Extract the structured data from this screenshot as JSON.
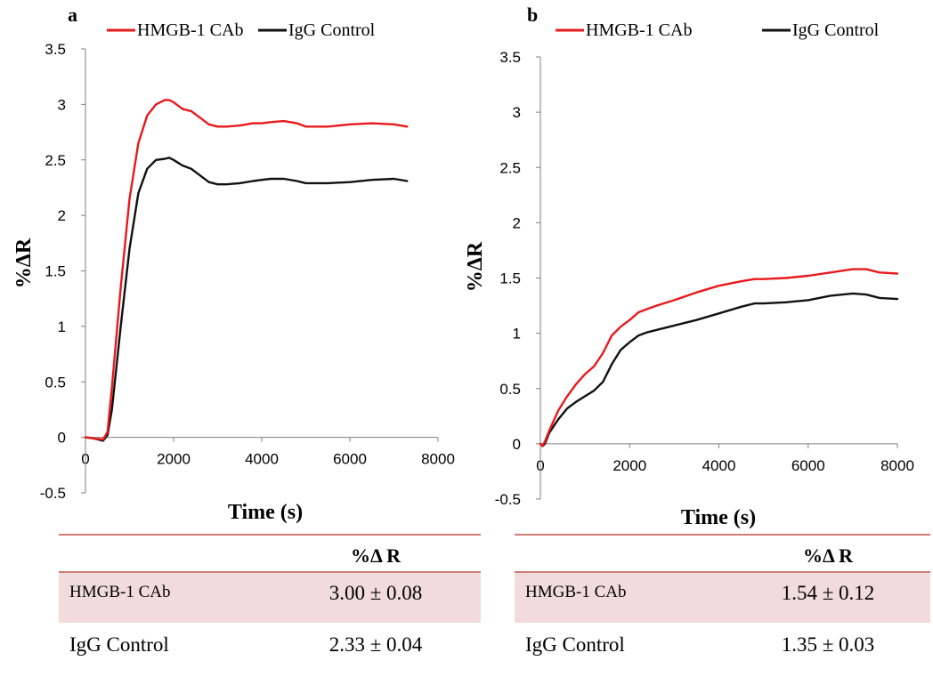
{
  "chart_data": [
    {
      "panel": "a",
      "type": "line",
      "xlabel": "Time (s)",
      "ylabel": "%ΔR",
      "xlim": [
        0,
        8000
      ],
      "ylim": [
        -0.5,
        3.5
      ],
      "xticks": [
        "0",
        "2000",
        "4000",
        "6000",
        "8000"
      ],
      "yticks": [
        "-0.5",
        "0",
        "0.5",
        "1",
        "1.5",
        "2",
        "2.5",
        "3",
        "3.5"
      ],
      "legend_position": "top",
      "series": [
        {
          "name": "HMGB-1 CAb",
          "color": "#e8191c",
          "x": [
            0,
            200,
            400,
            500,
            600,
            800,
            1000,
            1200,
            1400,
            1600,
            1800,
            1900,
            2000,
            2200,
            2400,
            2600,
            2800,
            3000,
            3200,
            3500,
            3800,
            4000,
            4200,
            4500,
            4800,
            5000,
            5200,
            5500,
            6000,
            6500,
            7000,
            7300
          ],
          "y": [
            0.0,
            -0.01,
            -0.02,
            0.05,
            0.45,
            1.35,
            2.15,
            2.65,
            2.9,
            3.0,
            3.04,
            3.04,
            3.02,
            2.96,
            2.94,
            2.88,
            2.82,
            2.8,
            2.8,
            2.81,
            2.83,
            2.83,
            2.84,
            2.85,
            2.83,
            2.8,
            2.8,
            2.8,
            2.82,
            2.83,
            2.82,
            2.8
          ]
        },
        {
          "name": "IgG Control",
          "color": "#111111",
          "x": [
            0,
            200,
            400,
            500,
            600,
            800,
            1000,
            1200,
            1400,
            1600,
            1800,
            1900,
            2000,
            2200,
            2400,
            2600,
            2800,
            3000,
            3200,
            3500,
            3800,
            4000,
            4200,
            4500,
            4800,
            5000,
            5200,
            5500,
            6000,
            6500,
            7000,
            7300
          ],
          "y": [
            0.0,
            -0.01,
            -0.03,
            0.02,
            0.25,
            1.0,
            1.7,
            2.2,
            2.42,
            2.5,
            2.51,
            2.52,
            2.5,
            2.45,
            2.42,
            2.36,
            2.3,
            2.28,
            2.28,
            2.29,
            2.31,
            2.32,
            2.33,
            2.33,
            2.31,
            2.29,
            2.29,
            2.29,
            2.3,
            2.32,
            2.33,
            2.31
          ]
        }
      ],
      "table": {
        "header": "%Δ R",
        "rows": [
          {
            "label": "HMGB-1 CAb",
            "value": "3.00 ± 0.08"
          },
          {
            "label": "IgG Control",
            "value": "2.33 ± 0.04"
          }
        ]
      }
    },
    {
      "panel": "b",
      "type": "line",
      "xlabel": "Time (s)",
      "ylabel": "%ΔR",
      "xlim": [
        0,
        8000
      ],
      "ylim": [
        -0.5,
        3.5
      ],
      "xticks": [
        "0",
        "2000",
        "4000",
        "6000",
        "8000"
      ],
      "yticks": [
        "-0.5",
        "0",
        "0.5",
        "1",
        "1.5",
        "2",
        "2.5",
        "3",
        "3.5"
      ],
      "legend_position": "top",
      "series": [
        {
          "name": "HMGB-1 CAb",
          "color": "#e8191c",
          "x": [
            0,
            50,
            100,
            200,
            400,
            600,
            800,
            1000,
            1200,
            1400,
            1600,
            1800,
            2000,
            2200,
            2400,
            2600,
            3000,
            3500,
            4000,
            4500,
            4800,
            5000,
            5500,
            6000,
            6500,
            7000,
            7300,
            7600,
            8000
          ],
          "y": [
            0.0,
            -0.02,
            0.02,
            0.12,
            0.3,
            0.43,
            0.54,
            0.63,
            0.7,
            0.82,
            0.98,
            1.06,
            1.12,
            1.19,
            1.22,
            1.25,
            1.3,
            1.37,
            1.43,
            1.47,
            1.49,
            1.49,
            1.5,
            1.52,
            1.55,
            1.58,
            1.58,
            1.55,
            1.54
          ]
        },
        {
          "name": "IgG Control",
          "color": "#111111",
          "x": [
            0,
            50,
            100,
            200,
            400,
            600,
            800,
            1000,
            1200,
            1400,
            1600,
            1800,
            2000,
            2200,
            2400,
            2600,
            3000,
            3500,
            4000,
            4500,
            4800,
            5000,
            5500,
            6000,
            6500,
            7000,
            7300,
            7600,
            8000
          ],
          "y": [
            0.0,
            -0.02,
            0.0,
            0.1,
            0.22,
            0.32,
            0.38,
            0.43,
            0.48,
            0.56,
            0.72,
            0.85,
            0.92,
            0.98,
            1.01,
            1.03,
            1.07,
            1.12,
            1.18,
            1.24,
            1.27,
            1.27,
            1.28,
            1.3,
            1.34,
            1.36,
            1.35,
            1.32,
            1.31
          ]
        }
      ],
      "table": {
        "header": "%Δ R",
        "rows": [
          {
            "label": "HMGB-1 CAb",
            "value": "1.54 ± 0.12"
          },
          {
            "label": "IgG Control",
            "value": "1.35 ± 0.03"
          }
        ]
      }
    }
  ],
  "colors": {
    "table_rule": "#c0504d",
    "table_highlight": "#f2dcdb",
    "axis": "#808080"
  }
}
